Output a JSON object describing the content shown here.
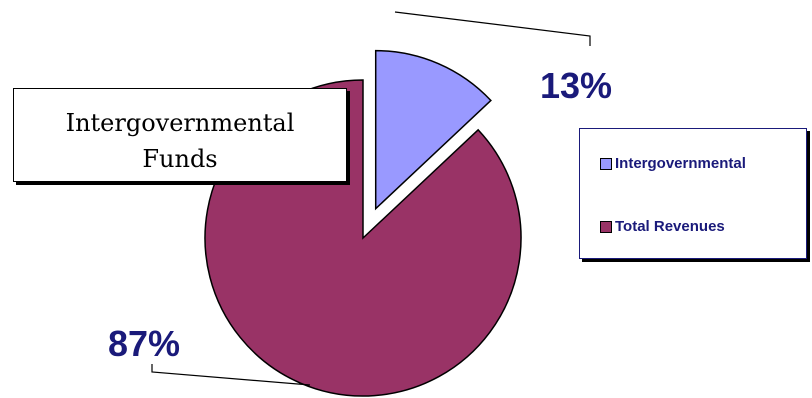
{
  "chart_data": {
    "type": "pie",
    "title_lines": [
      "Intergovernmental",
      "Funds"
    ],
    "slices": [
      {
        "label": "Intergovernmental",
        "value": 13,
        "value_label": "13%",
        "color": "#9999ff",
        "exploded": true
      },
      {
        "label": "Total Revenues",
        "value": 87,
        "value_label": "87%",
        "color": "#993366",
        "exploded": false
      }
    ],
    "legend": {
      "position": "right"
    }
  }
}
